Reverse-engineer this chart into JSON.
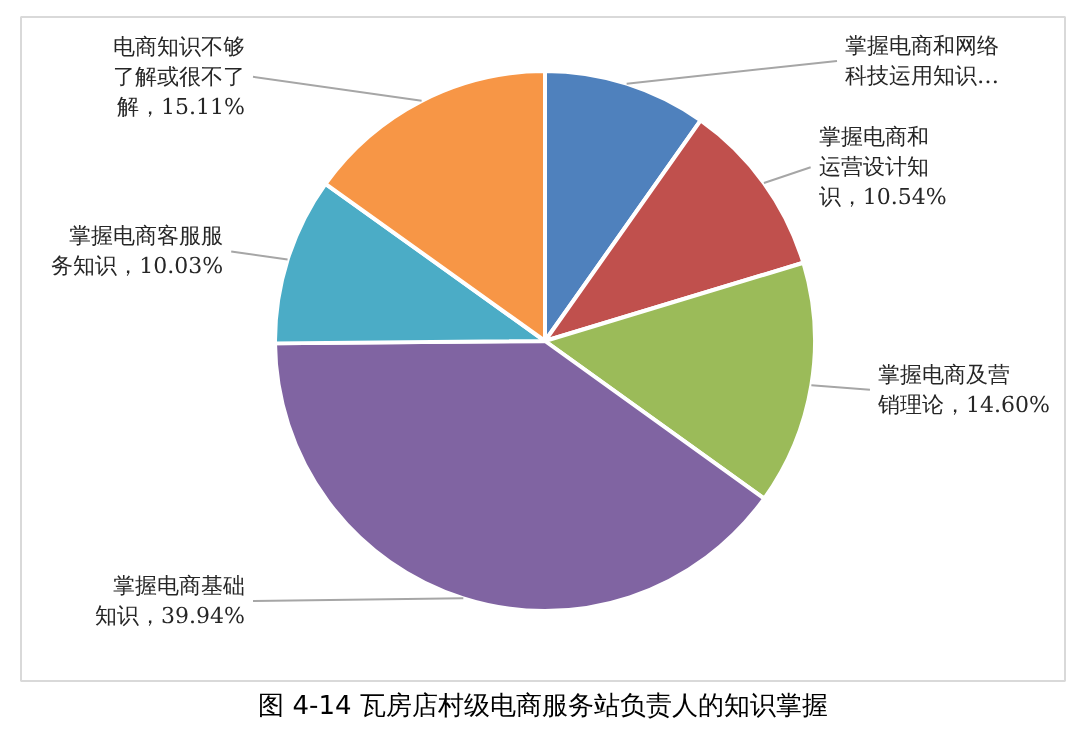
{
  "chart_data": {
    "type": "pie",
    "title": "图 4-14 瓦房店村级电商服务站负责人的知识掌握",
    "categories": [
      "掌握电商和网络科技运用知识…",
      "掌握电商和运营设计知识",
      "掌握电商及营销理论",
      "掌握电商基础知识",
      "掌握电商客服服务知识",
      "电商知识不够了解或很不了解"
    ],
    "values": [
      9.78,
      10.54,
      14.6,
      39.94,
      10.03,
      15.11
    ],
    "value_labels": [
      null,
      "10.54%",
      "14.60%",
      "39.94%",
      "10.03%",
      "15.11%"
    ],
    "colors": [
      "#4f81bd",
      "#c0504d",
      "#9bbb59",
      "#8064a2",
      "#4bacc6",
      "#f79646"
    ]
  }
}
